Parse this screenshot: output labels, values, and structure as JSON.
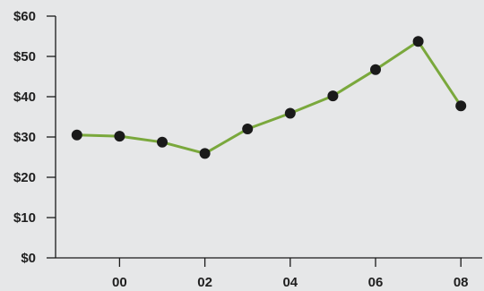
{
  "chart_data": {
    "type": "line",
    "title": "",
    "xlabel": "",
    "ylabel": "",
    "x": [
      1999,
      2000,
      2001,
      2002,
      2003,
      2004,
      2005,
      2006,
      2007,
      2008
    ],
    "values": [
      30.5,
      30.2,
      28.7,
      25.9,
      32.0,
      35.9,
      40.2,
      46.7,
      53.7,
      37.7
    ],
    "xlim": [
      1998.5,
      2008.5
    ],
    "ylim": [
      0,
      60
    ],
    "y_ticks": [
      0,
      10,
      20,
      30,
      40,
      50,
      60
    ],
    "y_tick_labels": [
      "$0",
      "$10",
      "$20",
      "$30",
      "$40",
      "$50",
      "$60"
    ],
    "x_ticks": [
      2000,
      2002,
      2004,
      2006,
      2008
    ],
    "x_tick_labels": [
      "00",
      "02",
      "04",
      "06",
      "08"
    ],
    "grid": false,
    "line_color": "#7aa83c",
    "marker_color": "#1a1a1a",
    "axis_color": "#1a1a1a",
    "background": "#e6e7e8"
  }
}
